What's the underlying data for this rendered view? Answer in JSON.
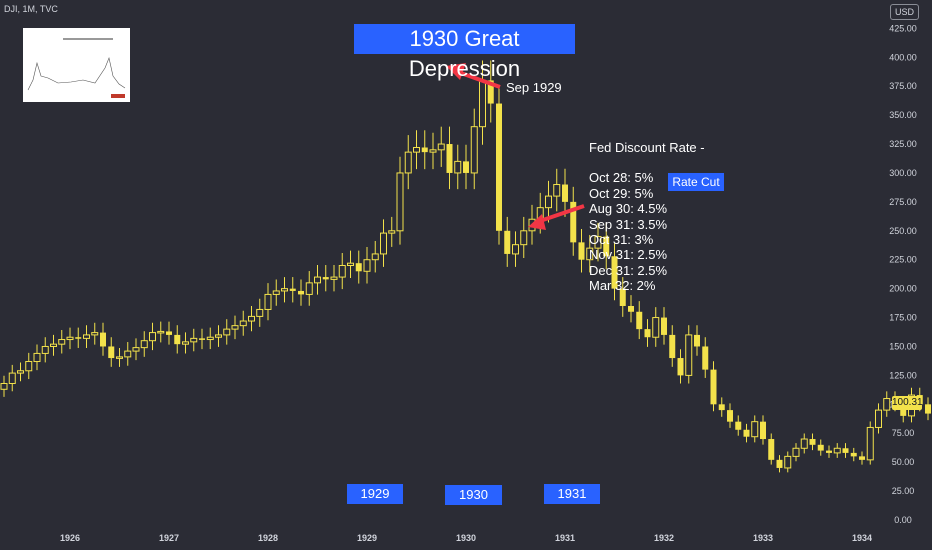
{
  "header": {
    "symbol": "DJI, 1M, TVC",
    "currency": "USD",
    "last_price": "100.31"
  },
  "annotations": {
    "title": "1930 Great Depression",
    "peak_label": "Sep 1929",
    "year_boxes": [
      "1929",
      "1930",
      "1931"
    ],
    "fed_title": "Fed Discount Rate -",
    "fed_lines": [
      "Oct 28: 5%",
      "Oct 29: 5%",
      "Aug 30: 4.5%",
      "Sep 31: 3.5%",
      "Oct 31: 3%",
      "Nov 31: 2.5%",
      "Dec 31: 2.5%",
      "Mar 32: 2%"
    ],
    "rate_cut": "Rate Cut"
  },
  "colors": {
    "background": "#2b2c35",
    "candle": "#f3e24b",
    "highlight": "#2962ff",
    "arrow": "#f23645"
  },
  "chart_data": {
    "type": "candlestick",
    "x_labels": [
      "1926",
      "1927",
      "1928",
      "1929",
      "1930",
      "1931",
      "1932",
      "1933",
      "1934"
    ],
    "y_ticks": [
      "425.00",
      "400.00",
      "375.00",
      "350.00",
      "325.00",
      "300.00",
      "275.00",
      "250.00",
      "225.00",
      "200.00",
      "175.00",
      "150.00",
      "125.00",
      "100.00",
      "75.00",
      "50.00",
      "25.00",
      "0.00"
    ],
    "ylim": [
      0,
      440
    ],
    "closes": [
      118,
      127,
      129,
      137,
      144,
      150,
      152,
      156,
      158,
      157,
      160,
      162,
      150,
      140,
      141,
      146,
      149,
      155,
      162,
      163,
      160,
      152,
      154,
      157,
      156,
      158,
      160,
      165,
      168,
      172,
      176,
      182,
      195,
      198,
      200,
      198,
      195,
      205,
      210,
      208,
      210,
      220,
      222,
      215,
      225,
      230,
      248,
      250,
      300,
      318,
      322,
      318,
      320,
      325,
      300,
      310,
      300,
      340,
      380,
      360,
      250,
      230,
      238,
      250,
      260,
      270,
      280,
      290,
      275,
      240,
      225,
      235,
      245,
      228,
      200,
      185,
      180,
      165,
      158,
      175,
      160,
      140,
      125,
      160,
      150,
      130,
      100,
      95,
      85,
      78,
      72,
      85,
      70,
      52,
      45,
      55,
      62,
      70,
      65,
      60,
      58,
      62,
      58,
      55,
      52,
      80,
      95,
      105,
      100,
      90,
      108,
      100,
      92,
      100,
      110,
      105,
      102,
      100.31
    ]
  }
}
